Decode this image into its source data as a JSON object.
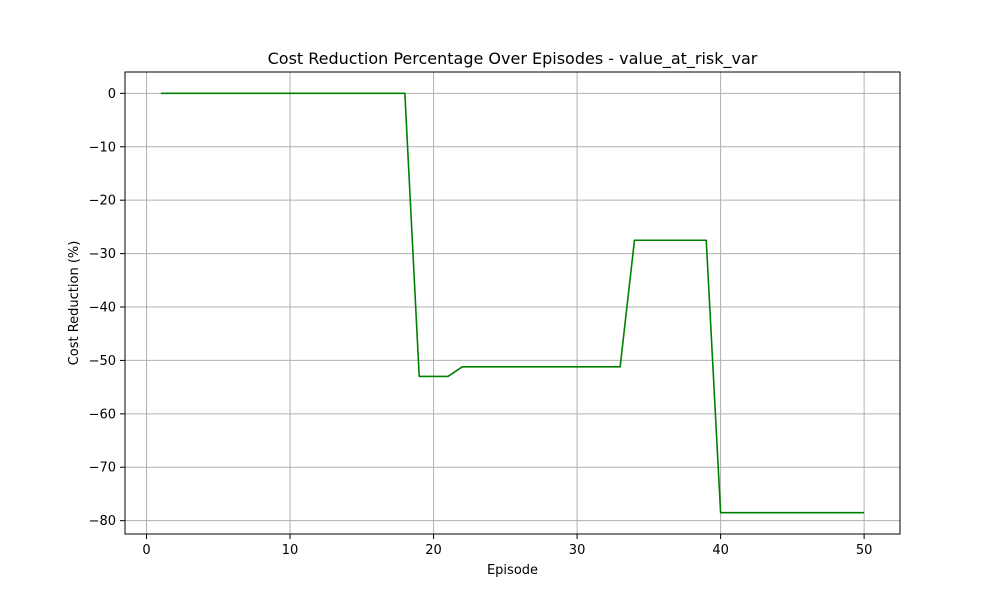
{
  "chart_data": {
    "type": "line",
    "title": "Cost Reduction Percentage Over Episodes - value_at_risk_var",
    "xlabel": "Episode",
    "ylabel": "Cost Reduction (%)",
    "xlim": [
      -1.5,
      52.5
    ],
    "ylim": [
      -82.5,
      4
    ],
    "xticks": [
      0,
      10,
      20,
      30,
      40,
      50
    ],
    "yticks": [
      0,
      -10,
      -20,
      -30,
      -40,
      -50,
      -60,
      -70,
      -80
    ],
    "xtick_labels": [
      "0",
      "10",
      "20",
      "30",
      "40",
      "50"
    ],
    "ytick_labels": [
      "0",
      "−10",
      "−20",
      "−30",
      "−40",
      "−50",
      "−60",
      "−70",
      "−80"
    ],
    "grid": true,
    "series": [
      {
        "color": "#008000",
        "x": [
          1,
          2,
          3,
          4,
          5,
          6,
          7,
          8,
          9,
          10,
          11,
          12,
          13,
          14,
          15,
          16,
          17,
          18,
          19,
          20,
          21,
          22,
          23,
          24,
          25,
          26,
          27,
          28,
          29,
          30,
          31,
          32,
          33,
          34,
          35,
          36,
          37,
          38,
          39,
          40,
          41,
          42,
          43,
          44,
          45,
          46,
          47,
          48,
          49,
          50
        ],
        "y": [
          0,
          0,
          0,
          0,
          0,
          0,
          0,
          0,
          0,
          0,
          0,
          0,
          0,
          0,
          0,
          0,
          0,
          0,
          -53,
          -53,
          -53,
          -51.2,
          -51.2,
          -51.2,
          -51.2,
          -51.2,
          -51.2,
          -51.2,
          -51.2,
          -51.2,
          -51.2,
          -51.2,
          -51.2,
          -27.5,
          -27.5,
          -27.5,
          -27.5,
          -27.5,
          -27.5,
          -78.5,
          -78.5,
          -78.5,
          -78.5,
          -78.5,
          -78.5,
          -78.5,
          -78.5,
          -78.5,
          -78.5,
          -78.5
        ]
      }
    ]
  }
}
